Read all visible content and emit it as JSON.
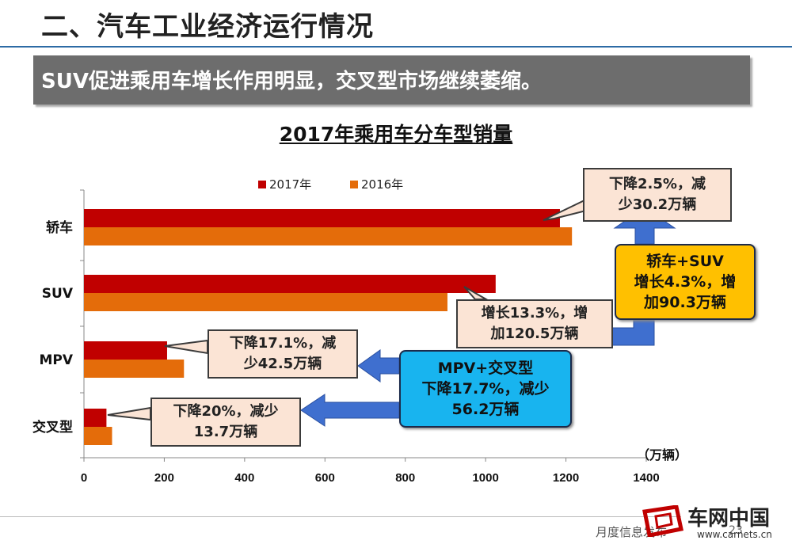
{
  "slide": {
    "title": "二、汽车工业经济运行情况",
    "banner": "SUV促进乘用车增长作用明显，交叉型市场继续萎缩。"
  },
  "chart_data": {
    "type": "bar",
    "orientation": "horizontal",
    "title": "2017年乘用车分车型销量",
    "categories": [
      "轿车",
      "SUV",
      "MPV",
      "交叉型"
    ],
    "series": [
      {
        "name": "2017年",
        "color": "#c00000",
        "values": [
          1185,
          1025,
          207,
          56
        ]
      },
      {
        "name": "2016年",
        "color": "#e46c0a",
        "values": [
          1215,
          905,
          249,
          70
        ]
      }
    ],
    "xlim": [
      0,
      1400
    ],
    "xticks": [
      0,
      200,
      400,
      600,
      800,
      1000,
      1200,
      1400
    ],
    "unit_label": "（万辆）",
    "legend_position": "top",
    "grid": false
  },
  "annotations": {
    "sedan": "下降2.5%，减\n少30.2万辆",
    "suv": "增长13.3%，增\n加120.5万辆",
    "mpv": "下降17.1%，减\n少42.5万辆",
    "cross": "下降20%，减少\n13.7万辆",
    "sedan_suv": "轿车+SUV\n增长4.3%，增\n加90.3万辆",
    "mpv_cross": "MPV+交叉型\n下降17.7%，减少\n56.2万辆"
  },
  "footer": {
    "text": "月度信息发布",
    "page": "23",
    "logo": "车网中国",
    "url": "www.carnets.cn"
  }
}
